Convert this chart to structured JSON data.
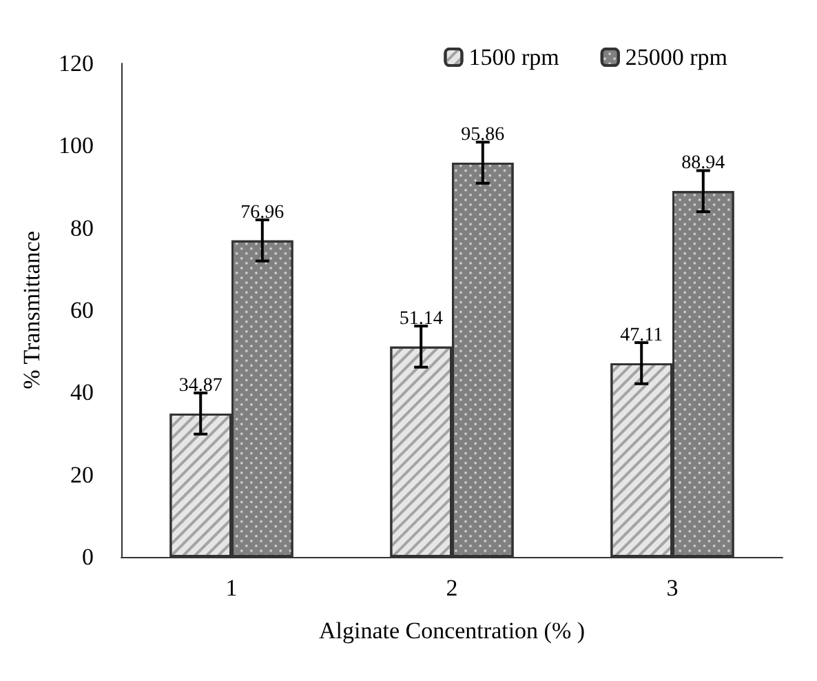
{
  "chart_data": {
    "type": "bar",
    "xlabel": "Alginate Concentration (% )",
    "ylabel": "% Transmittance",
    "categories": [
      "1",
      "2",
      "3"
    ],
    "series": [
      {
        "name": "1500 rpm",
        "color": "#e6e6e6",
        "values": [
          34.87,
          51.14,
          47.11
        ],
        "errors": [
          5,
          5,
          5
        ]
      },
      {
        "name": "25000 rpm",
        "color": "#808080",
        "values": [
          76.96,
          95.86,
          88.94
        ],
        "errors": [
          5,
          5,
          5
        ]
      }
    ],
    "ylim": [
      0,
      120
    ],
    "yticks": [
      0,
      20,
      40,
      60,
      80,
      100,
      120
    ],
    "grid": false,
    "legend": "top right",
    "data_labels": true
  }
}
